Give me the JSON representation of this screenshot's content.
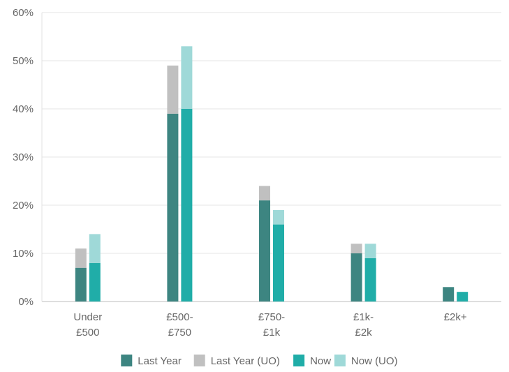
{
  "chart_data": {
    "type": "bar",
    "stacked_groups": true,
    "categories": [
      [
        "Under",
        "£500"
      ],
      [
        "£500-",
        "£750"
      ],
      [
        "£750-",
        "£1k"
      ],
      [
        "£1k-",
        "£2k"
      ],
      [
        "£2k+"
      ]
    ],
    "series": [
      {
        "name": "Last Year",
        "stack": "last_year",
        "color": "#3d8581",
        "values": [
          7,
          39,
          21,
          10,
          3
        ]
      },
      {
        "name": "Last Year (UO)",
        "stack": "last_year",
        "color": "#c0c0c0",
        "values": [
          4,
          10,
          3,
          2,
          0
        ]
      },
      {
        "name": "Now",
        "stack": "now",
        "color": "#20ada8",
        "values": [
          8,
          40,
          16,
          9,
          2
        ]
      },
      {
        "name": "Now (UO)",
        "stack": "now",
        "color": "#9fd9d8",
        "values": [
          6,
          13,
          3,
          3,
          0
        ]
      }
    ],
    "y_ticks": [
      "0%",
      "10%",
      "20%",
      "30%",
      "40%",
      "50%",
      "60%"
    ],
    "ylim": [
      0,
      60
    ],
    "grid": true,
    "legend_position": "bottom"
  }
}
